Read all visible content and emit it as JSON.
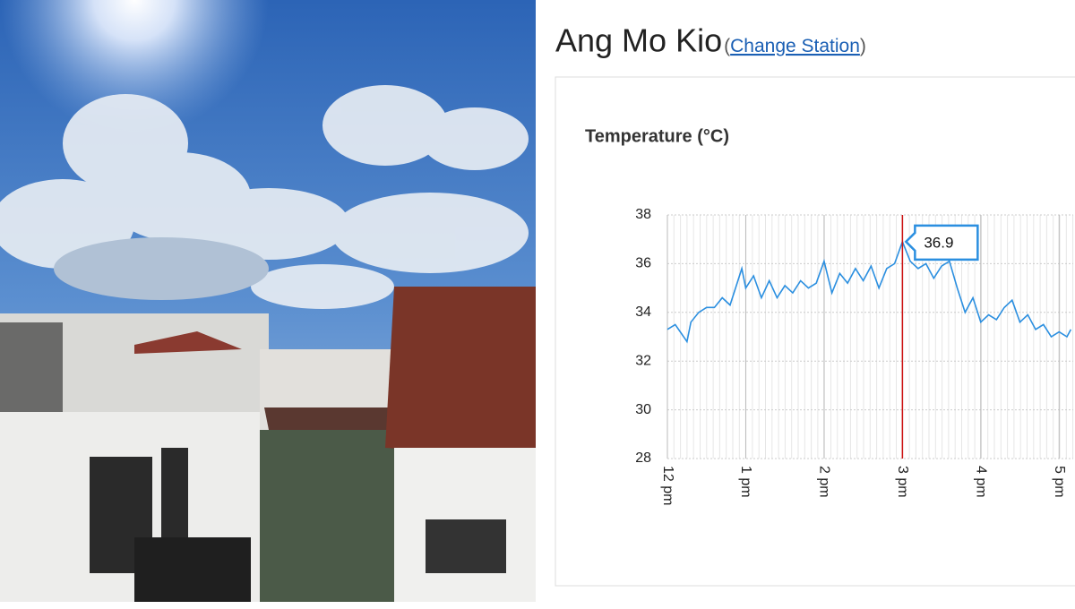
{
  "header": {
    "station": "Ang Mo Kio",
    "link_open": "(",
    "link": "Change Station",
    "link_close": ")"
  },
  "chart_data": {
    "type": "line",
    "title": "Temperature (°C)",
    "x": [
      0,
      0.1,
      0.25,
      0.3,
      0.4,
      0.5,
      0.6,
      0.7,
      0.8,
      0.95,
      1.0,
      1.1,
      1.2,
      1.3,
      1.4,
      1.5,
      1.6,
      1.7,
      1.8,
      1.9,
      2.0,
      2.1,
      2.2,
      2.3,
      2.4,
      2.5,
      2.6,
      2.7,
      2.8,
      2.9,
      3.0,
      3.1,
      3.2,
      3.3,
      3.4,
      3.5,
      3.6,
      3.7,
      3.8,
      3.9,
      4.0,
      4.1,
      4.2,
      4.3,
      4.4,
      4.5,
      4.6,
      4.7,
      4.8,
      4.9,
      5.0,
      5.1,
      5.15
    ],
    "series": [
      {
        "name": "Temperature",
        "color": "#2b8fe0",
        "values": [
          33.3,
          33.5,
          32.8,
          33.6,
          34.0,
          34.2,
          34.2,
          34.6,
          34.3,
          35.8,
          35.0,
          35.5,
          34.6,
          35.3,
          34.6,
          35.1,
          34.8,
          35.3,
          35.0,
          35.2,
          36.1,
          34.8,
          35.6,
          35.2,
          35.8,
          35.3,
          35.9,
          35.0,
          35.8,
          36.0,
          36.9,
          36.1,
          35.8,
          36.0,
          35.4,
          35.9,
          36.1,
          35.0,
          34.0,
          34.6,
          33.6,
          33.9,
          33.7,
          34.2,
          34.5,
          33.6,
          33.9,
          33.3,
          33.5,
          33.0,
          33.2,
          33.0,
          33.3
        ]
      }
    ],
    "xlim": [
      0,
      5.18
    ],
    "xticks": [
      {
        "value": 0,
        "label": "12 pm"
      },
      {
        "value": 1,
        "label": "1 pm"
      },
      {
        "value": 2,
        "label": "2 pm"
      },
      {
        "value": 3,
        "label": "3 pm"
      },
      {
        "value": 4,
        "label": "4 pm"
      },
      {
        "value": 5,
        "label": "5 pm"
      }
    ],
    "ylim": [
      28,
      38
    ],
    "yticks": [
      28,
      30,
      32,
      34,
      36,
      38
    ],
    "grid": true,
    "tooltip": {
      "x": 3,
      "value": 36.9,
      "line_color": "#cc1111"
    }
  }
}
